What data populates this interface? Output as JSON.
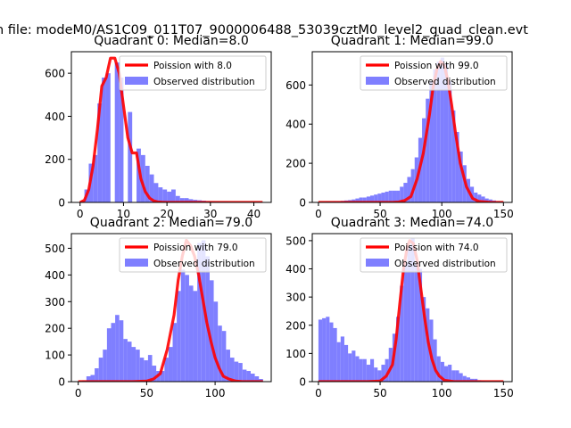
{
  "figure": {
    "suptitle": "n file: modeM0/AS1C09_011T07_9000006488_53039cztM0_level2_quad_clean.evt",
    "bar_color": "#7f7fff",
    "line_color": "#ff0000"
  },
  "chart_data": [
    {
      "type": "bar",
      "title": "Quadrant 0: Median=8.0",
      "xlim": [
        -2,
        44
      ],
      "ylim": [
        0,
        700
      ],
      "xticks": [
        0,
        10,
        20,
        30,
        40
      ],
      "yticks": [
        0,
        200,
        400,
        600
      ],
      "legend": [
        "Poission with 8.0",
        "Observed distribution"
      ],
      "legend_position": "top-right",
      "bins": {
        "x": [
          0,
          1,
          2,
          3,
          4,
          5,
          6,
          7,
          8,
          9,
          10,
          11,
          12,
          13,
          14,
          15,
          16,
          17,
          18,
          19,
          20,
          21,
          22,
          23,
          24,
          25,
          26,
          27,
          28,
          29,
          30,
          31,
          32,
          33,
          34,
          35,
          36,
          37,
          38,
          39,
          40,
          41,
          42
        ],
        "counts": [
          5,
          60,
          180,
          220,
          460,
          580,
          600,
          0,
          650,
          580,
          0,
          420,
          0,
          250,
          220,
          170,
          130,
          90,
          70,
          60,
          50,
          60,
          30,
          20,
          20,
          15,
          12,
          10,
          8,
          6,
          5,
          4,
          3,
          3,
          2,
          2,
          1,
          1,
          1,
          1,
          0,
          0,
          1
        ]
      },
      "poisson": {
        "x": [
          0,
          1,
          2,
          3,
          4,
          5,
          6,
          7,
          8,
          9,
          10,
          11,
          12,
          13,
          14,
          15,
          16,
          17,
          18,
          19,
          20,
          21,
          22,
          23,
          24,
          25,
          26,
          27,
          28,
          29,
          30,
          31,
          32,
          33,
          34,
          35,
          36,
          37,
          38,
          39,
          40,
          41,
          42
        ],
        "y": [
          0,
          10,
          60,
          170,
          340,
          540,
          580,
          670,
          670,
          600,
          450,
          300,
          230,
          230,
          110,
          50,
          20,
          7,
          2,
          1,
          0,
          0,
          0,
          0,
          0,
          0,
          0,
          0,
          0,
          0,
          0,
          0,
          0,
          0,
          0,
          0,
          0,
          0,
          0,
          0,
          0,
          0,
          0
        ]
      }
    },
    {
      "type": "bar",
      "title": "Quadrant 1: Median=99.0",
      "xlim": [
        -5,
        157
      ],
      "ylim": [
        0,
        770
      ],
      "xticks": [
        0,
        50,
        100,
        150
      ],
      "yticks": [
        0,
        200,
        400,
        600
      ],
      "legend": [
        "Poission with 99.0",
        "Observed distribution"
      ],
      "legend_position": "top-right",
      "bins": {
        "x": [
          0,
          3,
          6,
          9,
          12,
          15,
          18,
          21,
          24,
          27,
          30,
          33,
          36,
          39,
          42,
          45,
          48,
          51,
          54,
          57,
          60,
          63,
          66,
          69,
          72,
          75,
          78,
          81,
          84,
          87,
          90,
          93,
          96,
          99,
          102,
          105,
          108,
          111,
          114,
          117,
          120,
          123,
          126,
          129,
          132,
          135,
          138,
          141,
          144,
          147,
          150
        ],
        "counts": [
          3,
          3,
          5,
          5,
          6,
          6,
          8,
          10,
          12,
          15,
          20,
          25,
          25,
          30,
          35,
          40,
          45,
          50,
          55,
          60,
          60,
          60,
          80,
          100,
          130,
          170,
          230,
          330,
          430,
          530,
          620,
          680,
          720,
          740,
          710,
          620,
          470,
          360,
          260,
          190,
          120,
          80,
          50,
          40,
          30,
          20,
          15,
          10,
          6,
          4,
          2
        ]
      },
      "poisson": {
        "x": [
          0,
          10,
          20,
          30,
          40,
          50,
          60,
          65,
          70,
          75,
          80,
          85,
          90,
          93,
          96,
          99,
          102,
          105,
          108,
          111,
          115,
          120,
          125,
          130,
          140,
          150
        ],
        "y": [
          0,
          0,
          0,
          0,
          0,
          0,
          0,
          2,
          10,
          30,
          120,
          250,
          450,
          590,
          680,
          720,
          700,
          620,
          500,
          360,
          200,
          80,
          20,
          5,
          0,
          0
        ]
      }
    },
    {
      "type": "bar",
      "title": "Quadrant 2: Median=79.0",
      "xlim": [
        -5,
        141
      ],
      "ylim": [
        0,
        555
      ],
      "xticks": [
        0,
        50,
        100
      ],
      "yticks": [
        0,
        100,
        200,
        300,
        400,
        500
      ],
      "legend": [
        "Poission with 79.0",
        "Observed distribution"
      ],
      "legend_position": "top-right",
      "bins": {
        "x": [
          0,
          3,
          6,
          9,
          12,
          15,
          18,
          21,
          24,
          27,
          30,
          33,
          36,
          39,
          42,
          45,
          48,
          51,
          54,
          57,
          60,
          63,
          66,
          69,
          72,
          75,
          78,
          81,
          84,
          87,
          90,
          93,
          96,
          99,
          102,
          105,
          108,
          111,
          114,
          117,
          120,
          123,
          126,
          129,
          132
        ],
        "counts": [
          0,
          5,
          20,
          25,
          50,
          90,
          120,
          200,
          220,
          250,
          230,
          160,
          150,
          130,
          120,
          90,
          80,
          100,
          60,
          40,
          40,
          90,
          130,
          220,
          340,
          420,
          400,
          360,
          340,
          520,
          530,
          470,
          380,
          300,
          210,
          190,
          120,
          90,
          75,
          70,
          45,
          40,
          30,
          20,
          10
        ]
      },
      "poisson": {
        "x": [
          0,
          20,
          40,
          50,
          55,
          60,
          65,
          70,
          73,
          76,
          79,
          82,
          85,
          88,
          91,
          94,
          97,
          100,
          103,
          106,
          110,
          115,
          120,
          130,
          135
        ],
        "y": [
          0,
          0,
          0,
          2,
          10,
          30,
          120,
          250,
          380,
          470,
          530,
          510,
          470,
          400,
          310,
          220,
          150,
          90,
          50,
          20,
          10,
          2,
          0,
          0,
          0
        ]
      }
    },
    {
      "type": "bar",
      "title": "Quadrant 3: Median=74.0",
      "xlim": [
        -5,
        157
      ],
      "ylim": [
        0,
        525
      ],
      "xticks": [
        0,
        50,
        100,
        150
      ],
      "yticks": [
        0,
        100,
        200,
        300,
        400,
        500
      ],
      "legend": [
        "Poission with 74.0",
        "Observed distribution"
      ],
      "legend_position": "top-right",
      "bins": {
        "x": [
          0,
          3,
          6,
          9,
          12,
          15,
          18,
          21,
          24,
          27,
          30,
          33,
          36,
          39,
          42,
          45,
          48,
          51,
          54,
          57,
          60,
          63,
          66,
          69,
          72,
          75,
          78,
          81,
          84,
          87,
          90,
          93,
          96,
          99,
          102,
          105,
          108,
          111,
          114,
          117,
          120,
          123,
          126,
          129,
          132
        ],
        "counts": [
          220,
          225,
          230,
          210,
          190,
          140,
          160,
          130,
          100,
          110,
          90,
          80,
          80,
          60,
          80,
          50,
          40,
          60,
          80,
          120,
          170,
          230,
          340,
          420,
          480,
          510,
          420,
          400,
          300,
          260,
          220,
          150,
          90,
          70,
          55,
          60,
          40,
          40,
          30,
          20,
          15,
          10,
          10,
          5,
          3
        ]
      },
      "poisson": {
        "x": [
          0,
          20,
          40,
          50,
          55,
          60,
          63,
          66,
          69,
          72,
          74,
          77,
          80,
          83,
          86,
          89,
          92,
          95,
          98,
          102,
          110,
          120,
          150
        ],
        "y": [
          0,
          0,
          0,
          2,
          20,
          60,
          150,
          280,
          400,
          480,
          500,
          490,
          430,
          330,
          230,
          140,
          80,
          40,
          20,
          5,
          0,
          0,
          0
        ]
      }
    }
  ]
}
